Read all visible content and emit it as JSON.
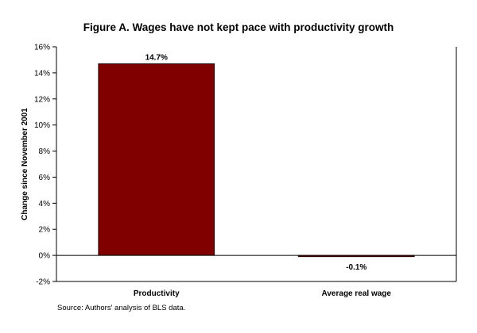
{
  "chart_data": {
    "type": "bar",
    "title": "Figure A. Wages have not kept pace with productivity growth",
    "ylabel": "Change since November 2001",
    "xlabel": "",
    "categories": [
      "Productivity",
      "Average real wage"
    ],
    "values": [
      14.7,
      -0.1
    ],
    "data_labels": [
      "14.7%",
      "-0.1%"
    ],
    "ylim": [
      -2,
      16
    ],
    "y_ticks": [
      -2,
      0,
      2,
      4,
      6,
      8,
      10,
      12,
      14,
      16
    ],
    "y_tick_labels": [
      "-2%",
      "0%",
      "2%",
      "4%",
      "6%",
      "8%",
      "10%",
      "12%",
      "14%",
      "16%"
    ],
    "bar_color": "#800000",
    "grid": false,
    "legend": "none",
    "source": "Source: Authors' analysis of BLS data."
  }
}
